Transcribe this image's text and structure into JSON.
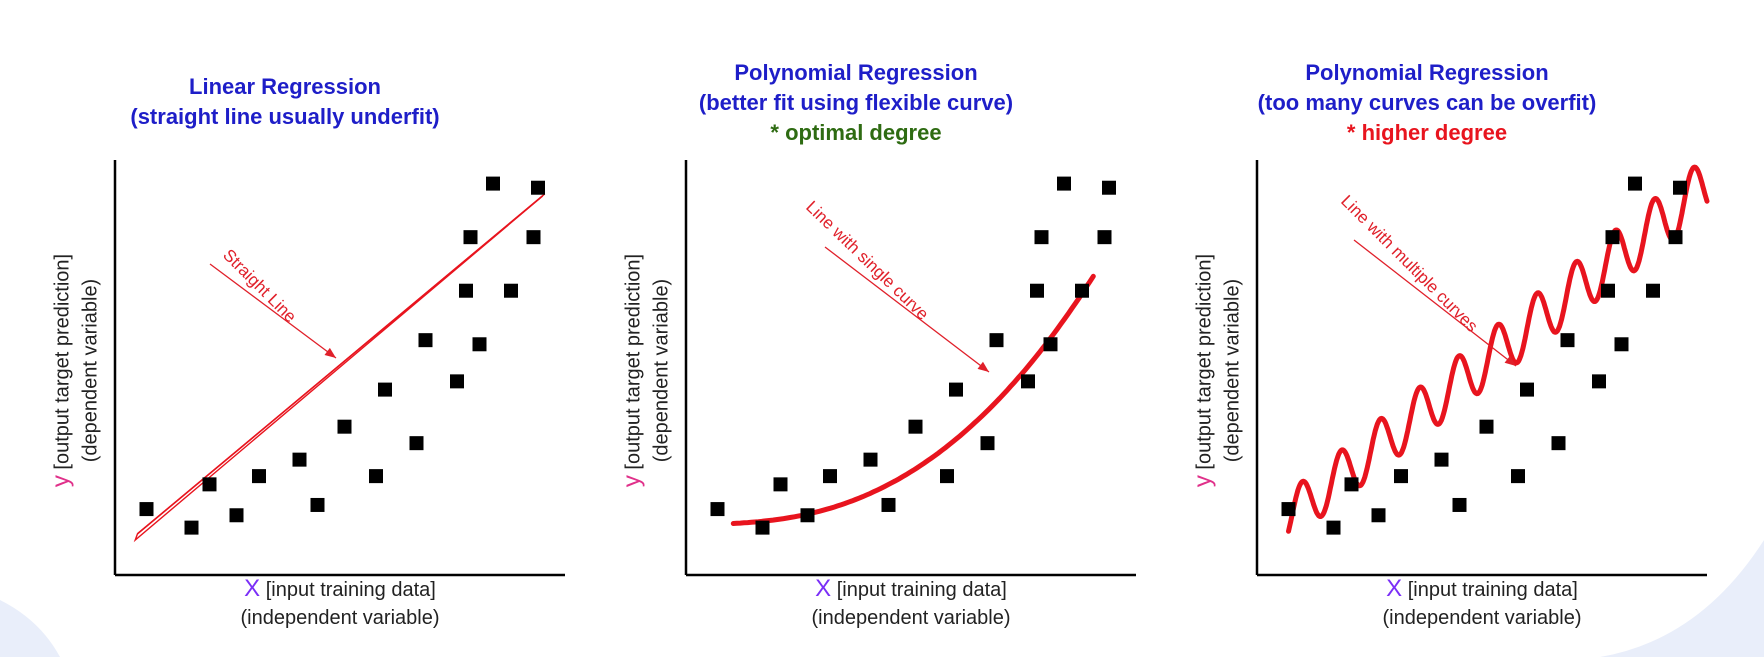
{
  "colors": {
    "title": "#1e1ec8",
    "note_optimal": "#2e6b12",
    "note_higher": "#e8141e",
    "curve": "#e8141e",
    "annotation": "#e0202a",
    "point": "#000000",
    "axis": "#000000",
    "axis_var": "#7b2ff7",
    "y_var": "#e0308a",
    "background_decor": "#e9eefa"
  },
  "axis_labels": {
    "x_var": "X",
    "x_text": "[input training data]",
    "x_sub": "(independent variable)",
    "y_var": "y",
    "y_text": "[output target prediction]",
    "y_sub": "(dependent variable)"
  },
  "panels": [
    {
      "title_line1": "Linear Regression",
      "title_line2": "(straight line usually underfit)",
      "note": "",
      "annotation": "Straight Line",
      "curve_icon": "straight-line"
    },
    {
      "title_line1": "Polynomial Regression",
      "title_line2": "(better fit using flexible curve)",
      "note": "* optimal degree",
      "annotation": "Line with single curve",
      "curve_icon": "single-curve"
    },
    {
      "title_line1": "Polynomial Regression",
      "title_line2": "(too many curves can be overfit)",
      "note": "* higher degree",
      "annotation": "Line with multiple curves",
      "curve_icon": "multiple-curves"
    }
  ],
  "points": [
    [
      0.07,
      0.16
    ],
    [
      0.17,
      0.115
    ],
    [
      0.21,
      0.22
    ],
    [
      0.27,
      0.145
    ],
    [
      0.32,
      0.24
    ],
    [
      0.41,
      0.28
    ],
    [
      0.45,
      0.17
    ],
    [
      0.51,
      0.36
    ],
    [
      0.58,
      0.24
    ],
    [
      0.6,
      0.45
    ],
    [
      0.67,
      0.32
    ],
    [
      0.69,
      0.57
    ],
    [
      0.76,
      0.47
    ],
    [
      0.78,
      0.69
    ],
    [
      0.79,
      0.82
    ],
    [
      0.81,
      0.56
    ],
    [
      0.84,
      0.95
    ],
    [
      0.88,
      0.69
    ],
    [
      0.93,
      0.82
    ],
    [
      0.94,
      0.94
    ]
  ]
}
